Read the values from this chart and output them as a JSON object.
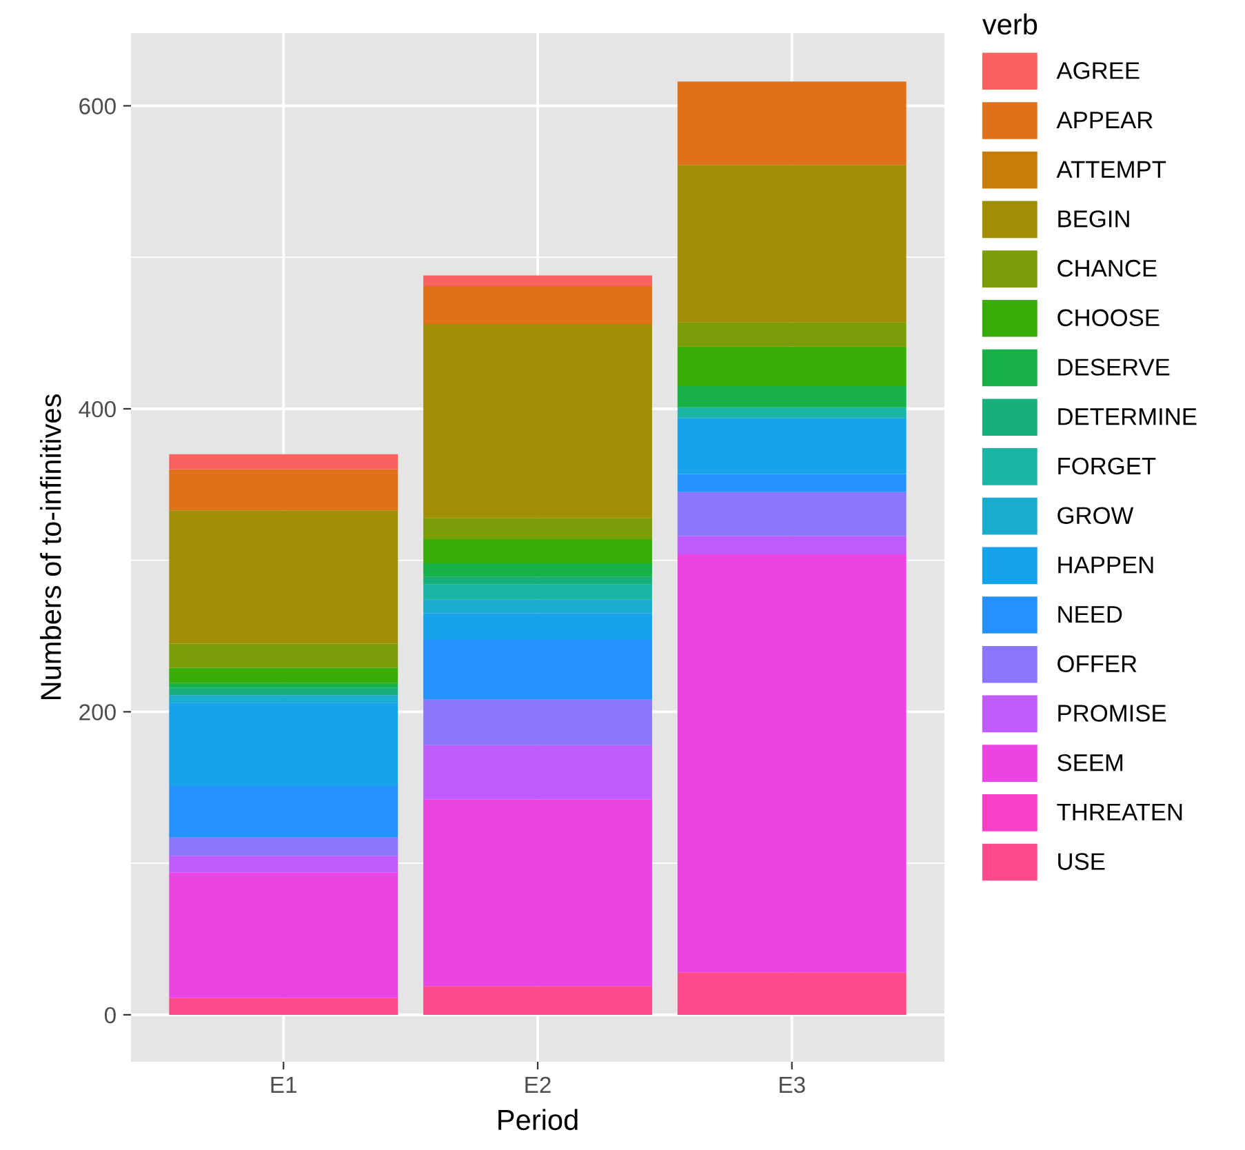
{
  "chart_data": {
    "type": "bar",
    "stacked": true,
    "xlabel": "Period",
    "ylabel": "Numbers of to-infinitives",
    "legend_title": "verb",
    "legend": "right",
    "grid": true,
    "categories": [
      "E1",
      "E2",
      "E3"
    ],
    "ylim": [
      -31,
      648
    ],
    "yticks": [
      0,
      {
        "value": 100,
        "label": null
      },
      200,
      {
        "value": 300,
        "label": null
      },
      400,
      {
        "value": 500,
        "label": null
      },
      600
    ],
    "series": [
      {
        "name": "USE",
        "color": "#ff4b8c",
        "values": [
          11,
          19,
          28
        ]
      },
      {
        "name": "THREATEN",
        "color": "#fb40c8",
        "values": [
          0,
          0,
          0
        ]
      },
      {
        "name": "SEEM",
        "color": "#ea45e2",
        "values": [
          83,
          123,
          276
        ]
      },
      {
        "name": "PROMISE",
        "color": "#c05cfe",
        "values": [
          11,
          36,
          12
        ]
      },
      {
        "name": "OFFER",
        "color": "#8b76fe",
        "values": [
          12,
          30,
          29
        ]
      },
      {
        "name": "NEED",
        "color": "#2590fe",
        "values": [
          34,
          40,
          12
        ]
      },
      {
        "name": "HAPPEN",
        "color": "#15a3ec",
        "values": [
          55,
          17,
          37
        ]
      },
      {
        "name": "GROW",
        "color": "#1aacce",
        "values": [
          5,
          9,
          0
        ]
      },
      {
        "name": "FORGET",
        "color": "#1ab5a5",
        "values": [
          0,
          10,
          7
        ]
      },
      {
        "name": "DETERMINE",
        "color": "#18b07a",
        "values": [
          5,
          5,
          0
        ]
      },
      {
        "name": "DESERVE",
        "color": "#17b148",
        "values": [
          3,
          9,
          14
        ]
      },
      {
        "name": "CHOOSE",
        "color": "#3aac08",
        "values": [
          10,
          16,
          26
        ]
      },
      {
        "name": "CHANCE",
        "color": "#7a9d08",
        "values": [
          16,
          14,
          16
        ]
      },
      {
        "name": "BEGIN",
        "color": "#a08f05",
        "values": [
          88,
          128,
          104
        ]
      },
      {
        "name": "ATTEMPT",
        "color": "#c77d0a",
        "values": [
          0,
          0,
          0
        ]
      },
      {
        "name": "APPEAR",
        "color": "#e0711a",
        "values": [
          27,
          25,
          55
        ]
      },
      {
        "name": "AGREE",
        "color": "#f8635f",
        "values": [
          10,
          7,
          0
        ]
      }
    ]
  }
}
